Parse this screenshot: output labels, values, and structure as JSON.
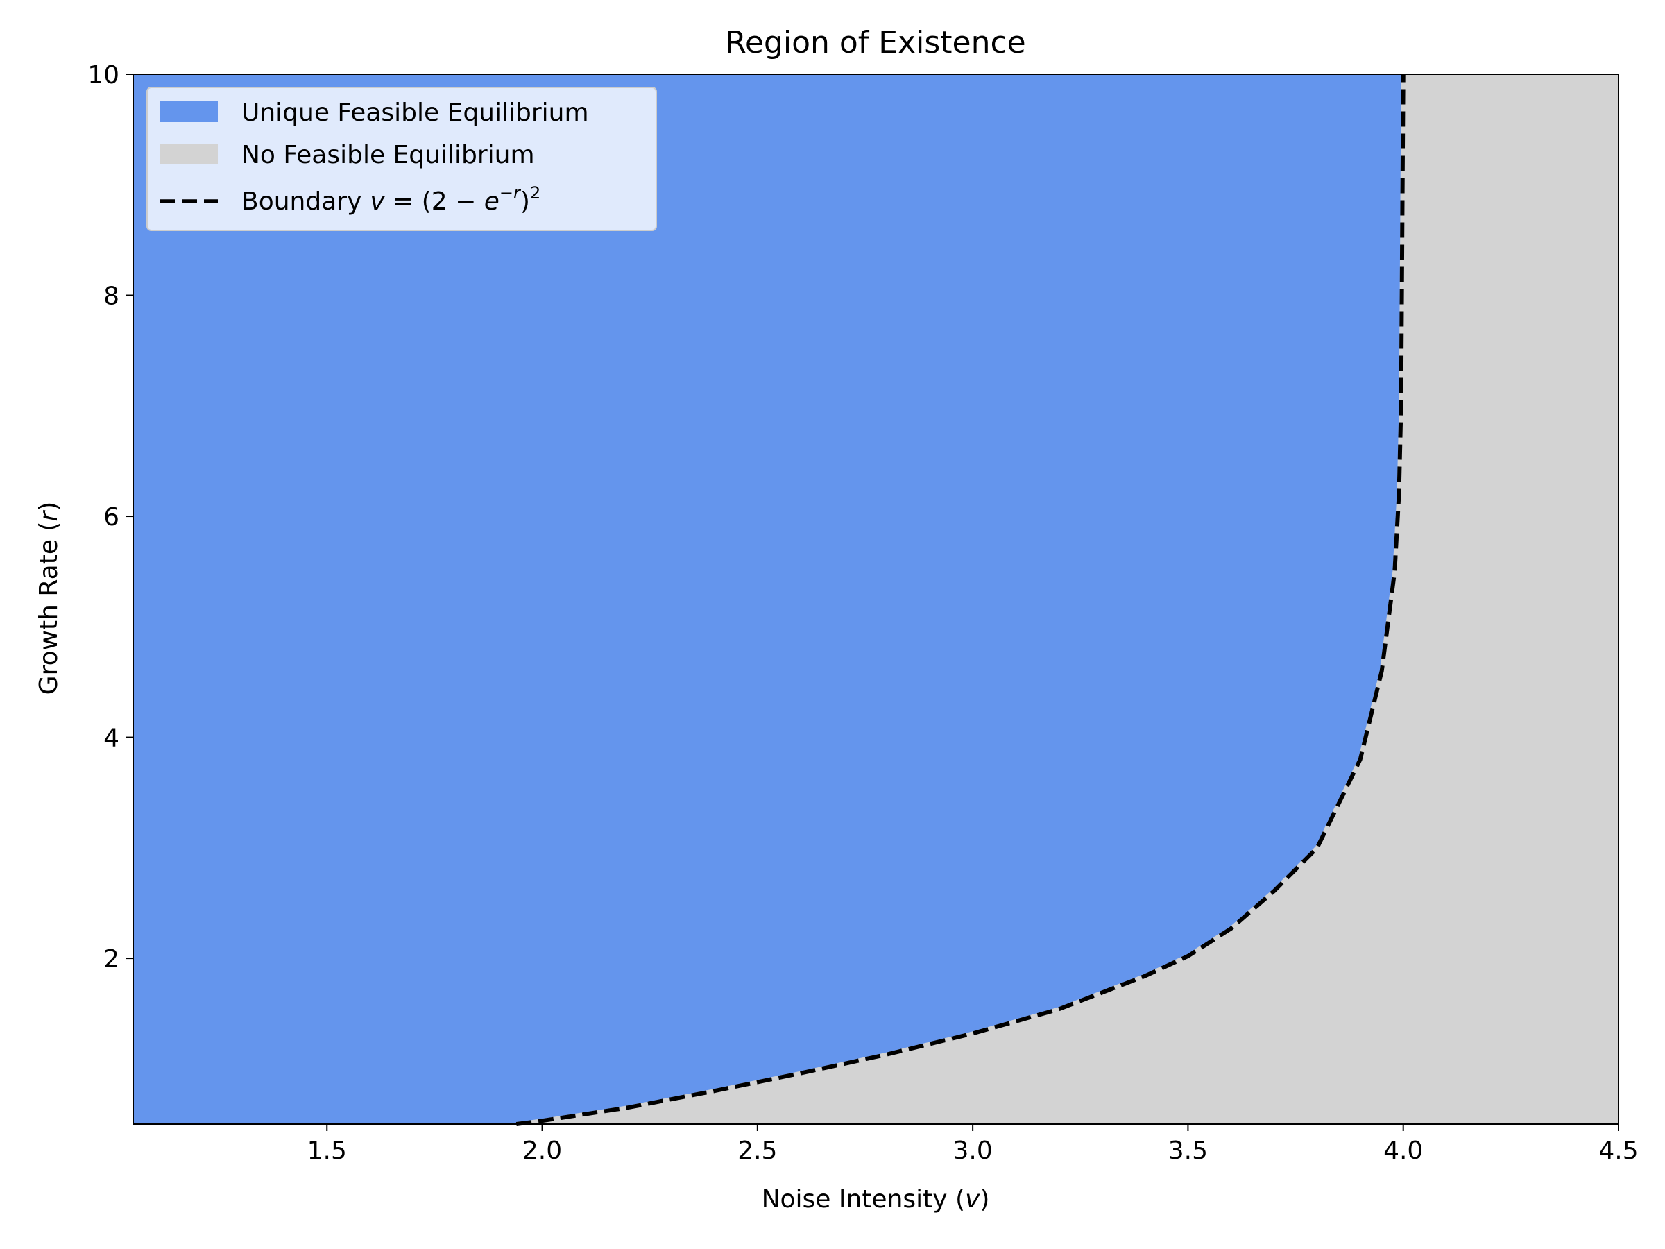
{
  "chart_data": {
    "type": "area",
    "title": "Region of Existence",
    "xlabel": {
      "prefix": "Noise Intensity (",
      "var": "v",
      "suffix": ")"
    },
    "ylabel": {
      "prefix": "Growth Rate (",
      "var": "r",
      "suffix": ")"
    },
    "xlim": [
      1.05,
      4.5
    ],
    "ylim": [
      0.5,
      10
    ],
    "x_ticks": [
      1.5,
      2.0,
      2.5,
      3.0,
      3.5,
      4.0,
      4.5
    ],
    "x_tick_labels": [
      "1.5",
      "2.0",
      "2.5",
      "3.0",
      "3.5",
      "4.0",
      "4.5"
    ],
    "y_ticks": [
      2,
      4,
      6,
      8,
      10
    ],
    "y_tick_labels": [
      "2",
      "4",
      "6",
      "8",
      "10"
    ],
    "grid": false,
    "legend_position": "top-left",
    "series": [
      {
        "name": "Unique Feasible Equilibrium",
        "kind": "fill",
        "color": "#6495ED",
        "region": "left of boundary"
      },
      {
        "name": "No Feasible Equilibrium",
        "kind": "fill",
        "color": "#D3D3D3",
        "region": "right of boundary"
      },
      {
        "name": "Boundary",
        "kind": "line",
        "style": "dashed",
        "color": "#000000",
        "x": [
          1.94,
          2.0,
          2.2,
          2.4,
          2.6,
          2.8,
          3.0,
          3.2,
          3.4,
          3.5,
          3.6,
          3.7,
          3.8,
          3.9,
          3.95,
          3.98,
          3.99,
          3.995,
          4.0
        ],
        "y": [
          0.5,
          0.53,
          0.65,
          0.8,
          0.96,
          1.13,
          1.32,
          1.54,
          1.84,
          2.02,
          2.27,
          2.61,
          3.0,
          3.8,
          4.6,
          5.5,
          6.2,
          7.0,
          10.0
        ]
      }
    ],
    "legend_entries": [
      {
        "label": "Unique Feasible Equilibrium",
        "kind": "patch",
        "color": "#6495ED"
      },
      {
        "label": "No Feasible Equilibrium",
        "kind": "patch",
        "color": "#D3D3D3"
      },
      {
        "label": "Boundary",
        "math": "v = (2 − e^(−r))^2",
        "kind": "dashed-line",
        "color": "#000000"
      }
    ]
  }
}
